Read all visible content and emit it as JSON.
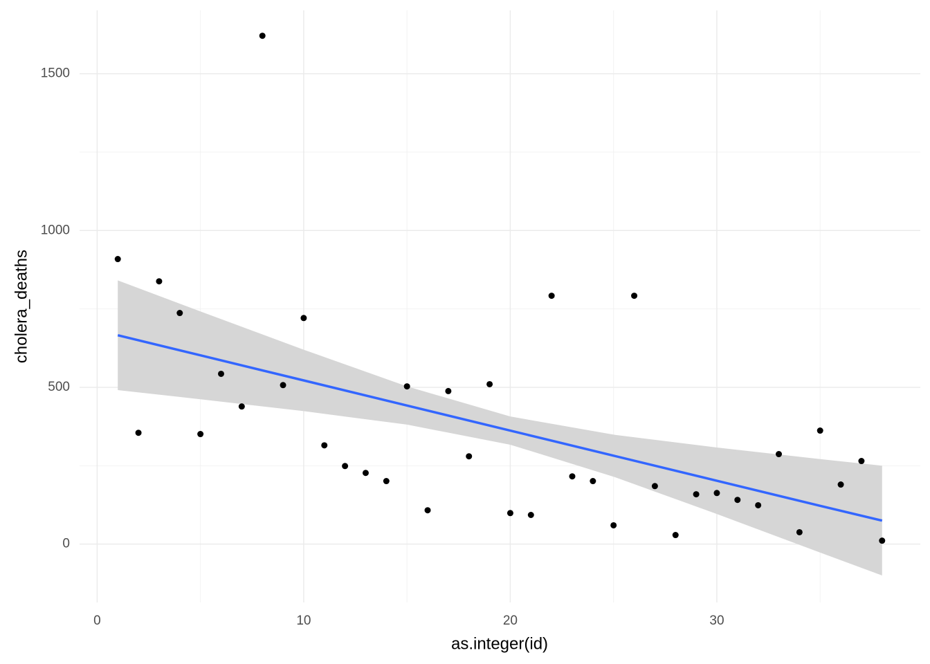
{
  "chart_data": {
    "type": "scatter",
    "x_label": "as.integer(id)",
    "y_label": "cholera_deaths",
    "x": [
      1,
      2,
      3,
      4,
      5,
      6,
      7,
      8,
      9,
      10,
      11,
      12,
      13,
      14,
      15,
      16,
      17,
      18,
      19,
      20,
      21,
      22,
      23,
      24,
      25,
      26,
      27,
      28,
      29,
      30,
      31,
      32,
      33,
      34,
      35,
      36,
      37,
      38
    ],
    "values": [
      909,
      355,
      838,
      737,
      351,
      543,
      439,
      1621,
      507,
      721,
      315,
      249,
      227,
      201,
      503,
      108,
      488,
      280,
      510,
      99,
      93,
      792,
      216,
      201,
      60,
      792,
      185,
      29,
      159,
      163,
      141,
      124,
      287,
      38,
      362,
      190,
      265,
      11
    ],
    "color": "#000000",
    "fit": {
      "x": [
        1,
        5,
        10,
        15,
        20,
        25,
        30,
        35,
        38
      ],
      "values": [
        666,
        602,
        522,
        442,
        362,
        282,
        202,
        122,
        75
      ],
      "upper": [
        841,
        742,
        620,
        503,
        407,
        349,
        308,
        271,
        250
      ],
      "lower": [
        491,
        462,
        424,
        381,
        317,
        215,
        96,
        -27,
        -100
      ],
      "color": "#3366ff",
      "band_color": "#d6d6d6"
    },
    "xlim": [
      -0.85,
      39.85
    ],
    "ylim": [
      -186,
      1702
    ],
    "xticks": [
      0,
      10,
      20,
      30
    ],
    "yticks": [
      0,
      500,
      1000,
      1500
    ],
    "x_minor_grid": [
      5,
      15,
      25,
      35
    ],
    "y_minor_grid": [
      250,
      750,
      1250
    ],
    "grid": true
  }
}
